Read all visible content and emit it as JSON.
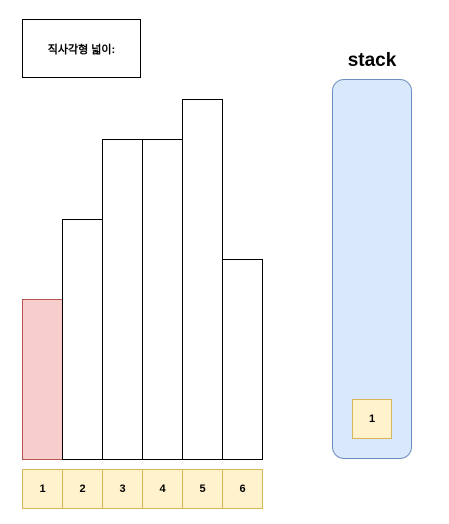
{
  "area_label": "직사각형 넓이:",
  "bars": [
    {
      "index": "1",
      "height": 4,
      "highlighted": true
    },
    {
      "index": "2",
      "height": 6,
      "highlighted": false
    },
    {
      "index": "3",
      "height": 8,
      "highlighted": false
    },
    {
      "index": "4",
      "height": 8,
      "highlighted": false
    },
    {
      "index": "5",
      "height": 9,
      "highlighted": false
    },
    {
      "index": "6",
      "height": 5,
      "highlighted": false
    }
  ],
  "stack": {
    "title": "stack",
    "items": [
      "1"
    ]
  },
  "colors": {
    "highlight_fill": "#f8cecc",
    "highlight_stroke": "#b85450",
    "index_fill": "#fff2cc",
    "index_stroke": "#d6b656",
    "stack_fill": "#dae8fc",
    "stack_stroke": "#6c8ebf"
  }
}
